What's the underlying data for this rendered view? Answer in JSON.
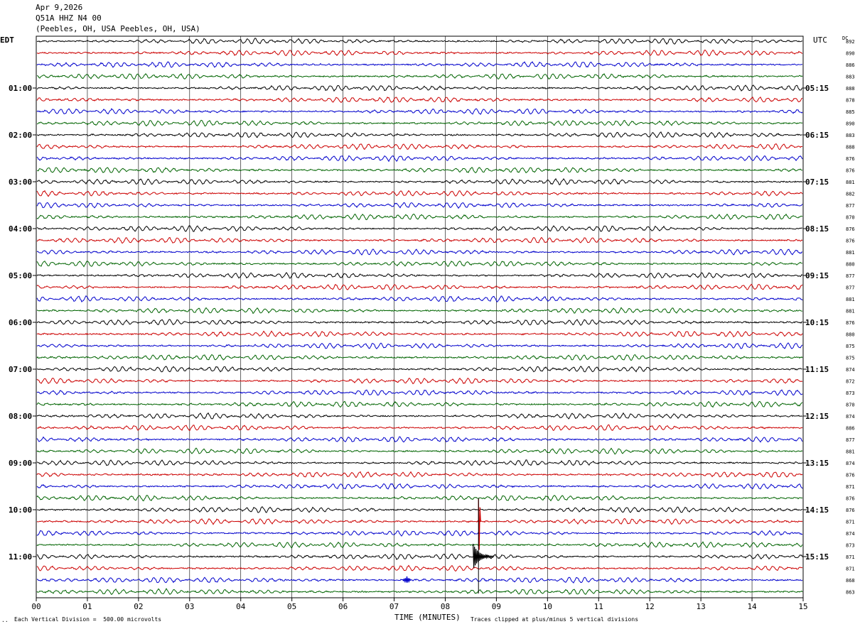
{
  "header": {
    "date": "Apr 9,2026",
    "station": "Q51A HHZ N4 00",
    "location": "(Peebles, OH, USA Peebles, OH, USA)"
  },
  "axis": {
    "left_label": "EDT",
    "right_label": "UTC",
    "dc_label": "DC",
    "x_title": "TIME (MINUTES)"
  },
  "footer": {
    "scale_note": "Each Vertical Division =  500.00 microvolts",
    "clip_note": "Traces clipped at plus/minus 5 vertical divisions",
    "corner_mark": "··"
  },
  "chart_data": {
    "type": "line",
    "title": "Q51A HHZ N4 00",
    "xlabel": "TIME (MINUTES)",
    "xlim": [
      0,
      15
    ],
    "x_ticks": [
      "00",
      "01",
      "02",
      "03",
      "04",
      "05",
      "06",
      "07",
      "08",
      "09",
      "10",
      "11",
      "12",
      "13",
      "14",
      "15"
    ],
    "trace_count": 48,
    "trace_colors": [
      "#000000",
      "#cc0000",
      "#0000cc",
      "#006400"
    ],
    "left_time_labels": [
      "01:00",
      "02:00",
      "03:00",
      "04:00",
      "05:00",
      "06:00",
      "07:00",
      "08:00",
      "09:00",
      "10:00",
      "11:00"
    ],
    "right_time_labels": [
      "05:15",
      "06:15",
      "07:15",
      "08:15",
      "09:15",
      "10:15",
      "11:15",
      "12:15",
      "13:15",
      "14:15",
      "15:15"
    ],
    "dc_values": [
      892,
      890,
      886,
      883,
      888,
      878,
      885,
      890,
      883,
      888,
      876,
      876,
      881,
      882,
      877,
      870,
      876,
      876,
      881,
      880,
      877,
      877,
      881,
      881,
      876,
      880,
      875,
      875,
      874,
      872,
      873,
      870,
      874,
      886,
      877,
      881,
      874,
      876,
      871,
      876,
      876,
      871,
      874,
      873,
      871,
      871,
      868,
      863
    ],
    "events": [
      {
        "trace": 41,
        "minute": 8.65,
        "kind": "spike"
      },
      {
        "trace": 44,
        "minute": 8.6,
        "kind": "burst"
      },
      {
        "trace": 46,
        "minute": 7.25,
        "kind": "blip"
      }
    ],
    "grid": true
  }
}
